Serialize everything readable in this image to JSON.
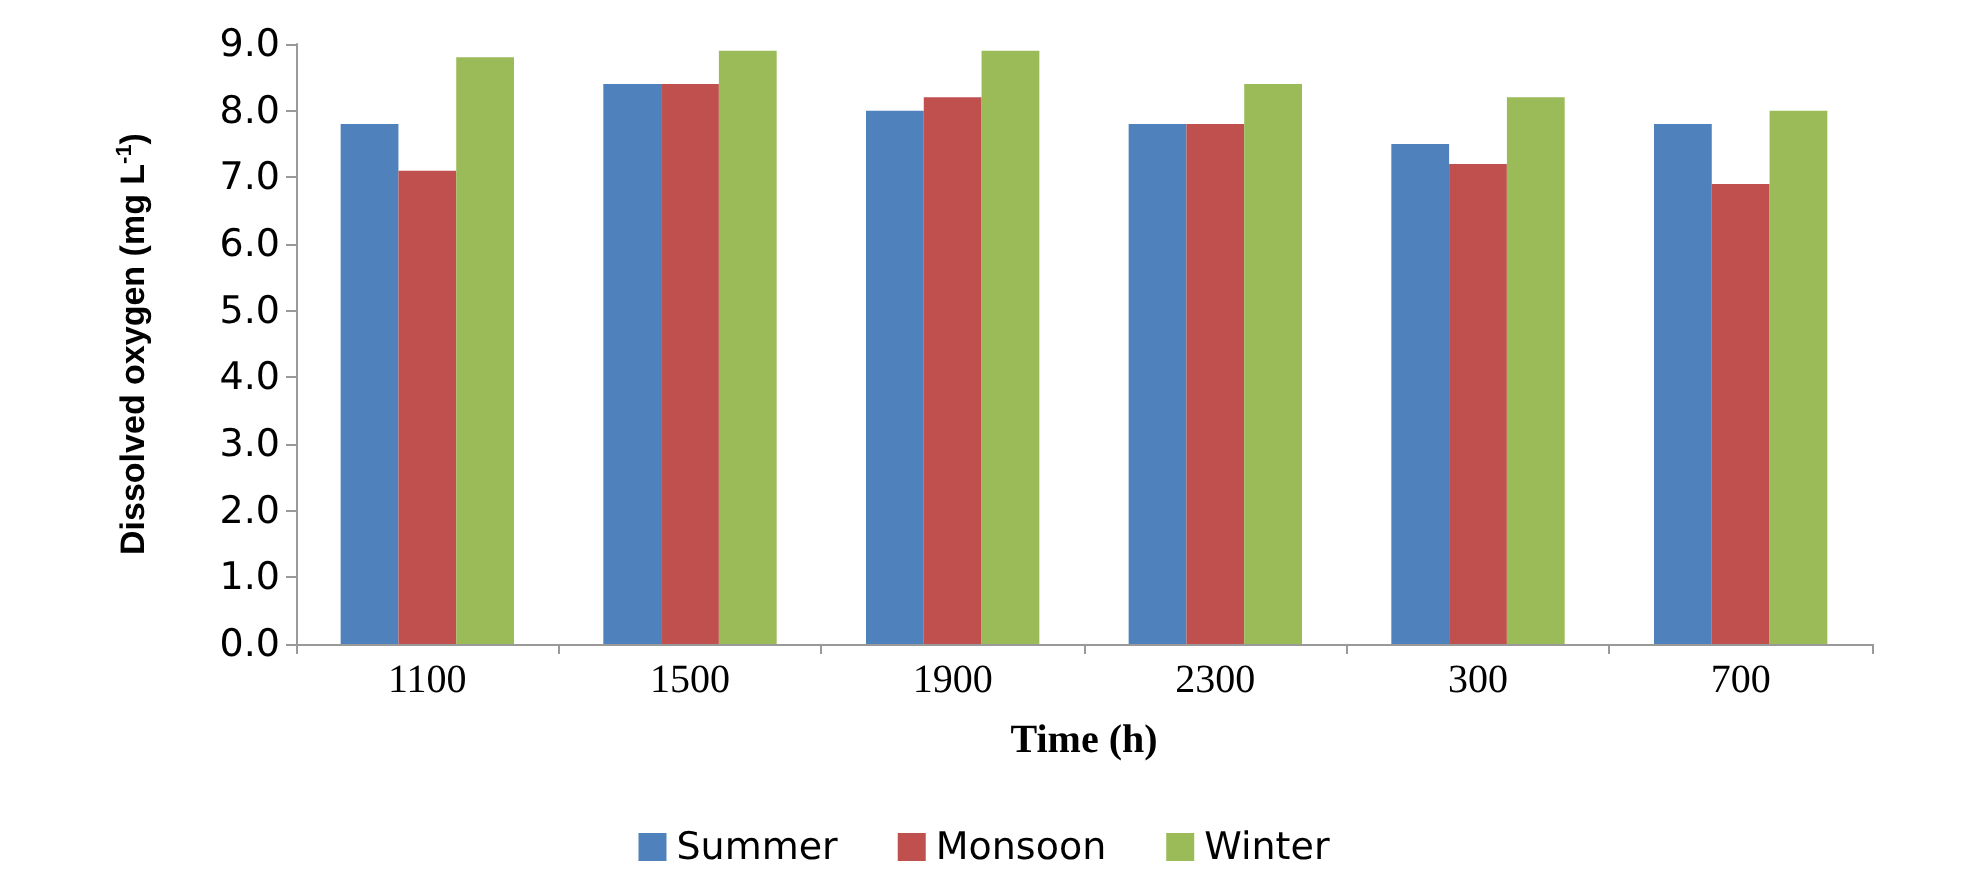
{
  "chart_data": {
    "type": "bar",
    "xlabel": "Time (h)",
    "ylabel": "Dissolved oxygen (mg L$^{-1}$)",
    "categories": [
      "1100",
      "1500",
      "1900",
      "2300",
      "300",
      "700"
    ],
    "series": [
      {
        "name": "Summer",
        "color": "#4f81bd",
        "values": [
          7.8,
          8.4,
          8.0,
          7.8,
          7.5,
          7.8
        ]
      },
      {
        "name": "Monsoon",
        "color": "#c0504d",
        "values": [
          7.1,
          8.4,
          8.2,
          7.8,
          7.2,
          6.9
        ]
      },
      {
        "name": "Winter",
        "color": "#9bbb59",
        "values": [
          8.8,
          8.9,
          8.9,
          8.4,
          8.2,
          8.0
        ]
      }
    ],
    "ylim": [
      0,
      9
    ],
    "yticks": [
      {
        "value": 0,
        "label": "0.0"
      },
      {
        "value": 1,
        "label": "1.0"
      },
      {
        "value": 2,
        "label": "2.0"
      },
      {
        "value": 3,
        "label": "3.0"
      },
      {
        "value": 4,
        "label": "4.0"
      },
      {
        "value": 5,
        "label": "5.0"
      },
      {
        "value": 6,
        "label": "6.0"
      },
      {
        "value": 7,
        "label": "7.0"
      },
      {
        "value": 8,
        "label": "8.0"
      },
      {
        "value": 9,
        "label": "9.0"
      }
    ],
    "grid": false,
    "legend": "bottom"
  }
}
